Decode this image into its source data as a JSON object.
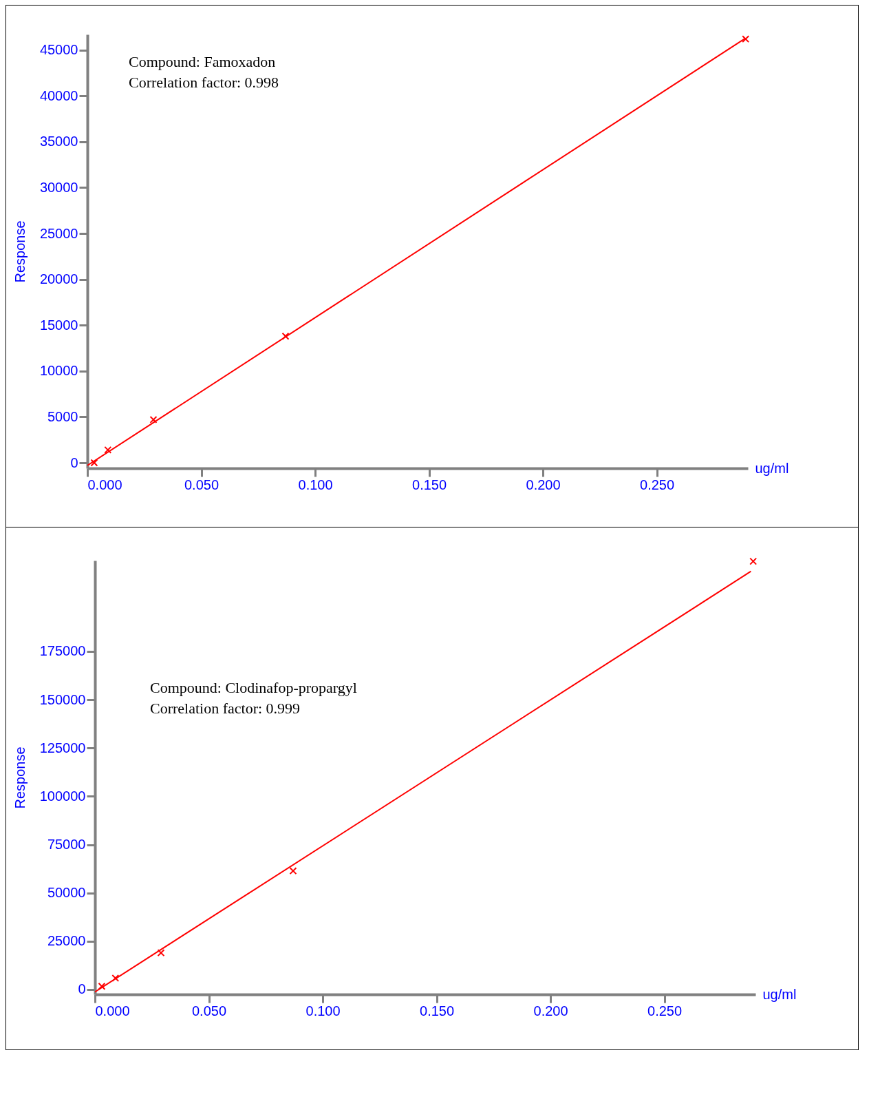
{
  "chart_data": [
    {
      "type": "scatter",
      "xlabel": "ug/ml",
      "ylabel": "Response",
      "annotations": [
        "Compound: Famoxadon",
        "Correlation factor: 0.998"
      ],
      "xlim": [
        0,
        0.29
      ],
      "ylim": [
        -600,
        46700
      ],
      "xticks": [
        {
          "value": 0,
          "label": "0.000"
        },
        {
          "value": 0.05,
          "label": "0.050"
        },
        {
          "value": 0.1,
          "label": "0.100"
        },
        {
          "value": 0.15,
          "label": "0.150"
        },
        {
          "value": 0.2,
          "label": "0.200"
        },
        {
          "value": 0.25,
          "label": "0.250"
        }
      ],
      "yticks": [
        0,
        5000,
        10000,
        15000,
        20000,
        25000,
        30000,
        35000,
        40000,
        45000
      ],
      "grid": false,
      "series": [
        {
          "type": "line",
          "color": "#ff0000",
          "x": [
            0,
            0.289
          ],
          "values": [
            -300,
            46300
          ],
          "marker": "none"
        },
        {
          "type": "scatter",
          "color": "#ff0000",
          "x": [
            0.003,
            0.009,
            0.029,
            0.087,
            0.289
          ],
          "values": [
            0,
            1400,
            4700,
            13800,
            46200
          ],
          "marker": "cross"
        }
      ]
    },
    {
      "type": "scatter",
      "xlabel": "ug/ml",
      "ylabel": "Response",
      "annotations": [
        "Compound: Clodinafop-propargyl",
        "Correlation factor: 0.999"
      ],
      "xlim": [
        0,
        0.29
      ],
      "ylim": [
        -2500,
        222000
      ],
      "xticks": [
        {
          "value": 0,
          "label": "0.000"
        },
        {
          "value": 0.05,
          "label": "0.050"
        },
        {
          "value": 0.1,
          "label": "0.100"
        },
        {
          "value": 0.15,
          "label": "0.150"
        },
        {
          "value": 0.2,
          "label": "0.200"
        },
        {
          "value": 0.25,
          "label": "0.250"
        }
      ],
      "yticks": [
        0,
        25000,
        50000,
        75000,
        100000,
        125000,
        150000,
        175000
      ],
      "grid": false,
      "series": [
        {
          "type": "line",
          "color": "#ff0000",
          "x": [
            0,
            0.288
          ],
          "values": [
            -1200,
            216400
          ],
          "marker": "none"
        },
        {
          "type": "scatter",
          "color": "#ff0000",
          "x": [
            0.003,
            0.009,
            0.029,
            0.087,
            0.289
          ],
          "values": [
            1700,
            5900,
            19000,
            61400,
            221600
          ],
          "marker": "cross"
        }
      ]
    }
  ]
}
